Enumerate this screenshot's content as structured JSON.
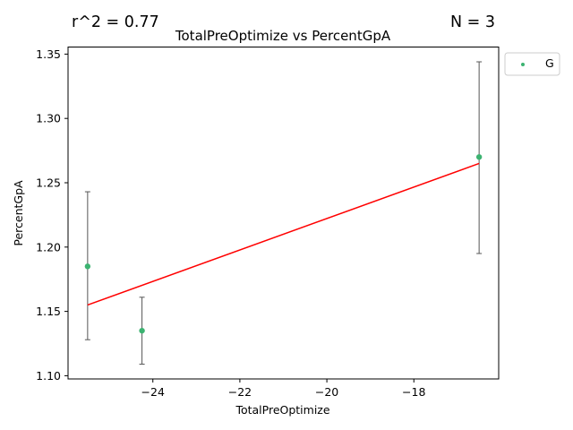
{
  "chart_data": {
    "type": "scatter",
    "title": "TotalPreOptimize vs PercentGpA",
    "xlabel": "TotalPreOptimize",
    "ylabel": "PercentGpA",
    "xlim": [
      -25.95,
      -16.05
    ],
    "ylim": [
      1.0975,
      1.3555
    ],
    "x_ticks": [
      -24,
      -22,
      -20,
      -18
    ],
    "y_ticks": [
      1.1,
      1.15,
      1.2,
      1.25,
      1.3,
      1.35
    ],
    "x_tick_labels": [
      "−24",
      "−22",
      "−20",
      "−18"
    ],
    "y_tick_labels": [
      "1.10",
      "1.15",
      "1.20",
      "1.25",
      "1.30",
      "1.35"
    ],
    "annotations": {
      "r_squared": "r^2 = 0.77",
      "n": "N = 3"
    },
    "series": [
      {
        "name": "G",
        "color": "#3cb371",
        "points": [
          {
            "x": -25.5,
            "y": 1.185,
            "err_low": 1.128,
            "err_high": 1.243
          },
          {
            "x": -24.25,
            "y": 1.135,
            "err_low": 1.109,
            "err_high": 1.161
          },
          {
            "x": -16.5,
            "y": 1.27,
            "err_low": 1.195,
            "err_high": 1.344
          }
        ]
      }
    ],
    "fit_line": {
      "color": "#ff0000",
      "x": [
        -25.5,
        -16.5
      ],
      "y": [
        1.155,
        1.265
      ]
    },
    "errorbar_color": "#555555",
    "grid": false,
    "legend_position": "outside-upper-right"
  }
}
